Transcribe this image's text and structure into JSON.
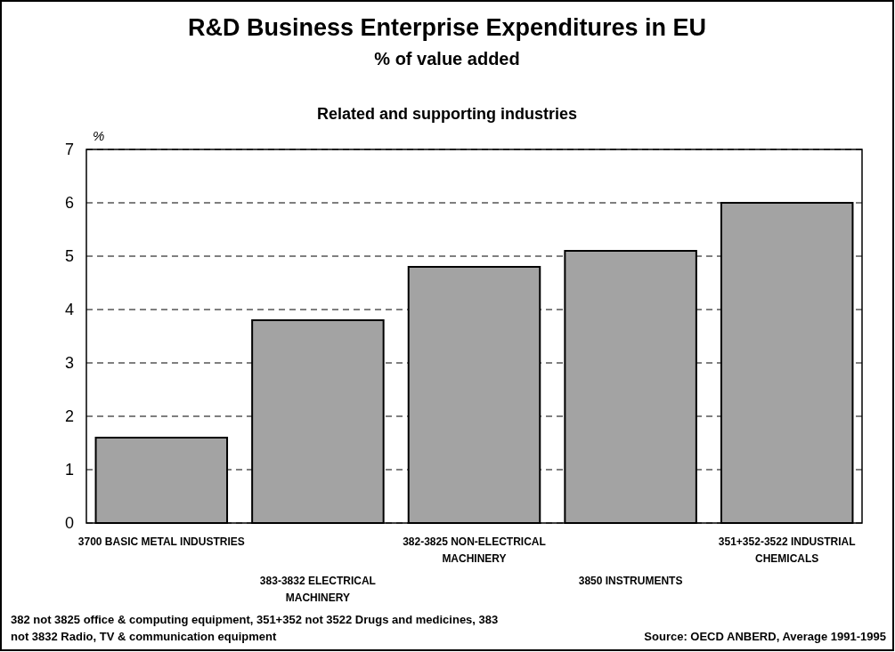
{
  "chart_data": {
    "type": "bar",
    "title": "R&D Business Enterprise Expenditures in EU",
    "subtitle": "% of value added",
    "ylabel": "%",
    "categories": [
      "3700 BASIC METAL INDUSTRIES",
      "383-3832 ELECTRICAL MACHINERY",
      "382-3825 NON-ELECTRICAL MACHINERY",
      "3850 INSTRUMENTS",
      "351+352-3522 INDUSTRIAL CHEMICALS"
    ],
    "values": [
      1.6,
      3.8,
      4.8,
      5.1,
      6.0
    ],
    "color": "#a3a3a3",
    "ylim": [
      0,
      7
    ],
    "yticks": [
      0,
      1,
      2,
      3,
      4,
      5,
      6,
      7
    ],
    "grid": "y",
    "annotations": [
      "Related and supporting industries",
      "382 not 3825 office & computing equipment, 351+352 not 3522 Drugs and medicines,  383 not 3832 Radio, TV & communication equipment",
      "Source: OECD ANBERD, Average 1991-1995"
    ]
  }
}
